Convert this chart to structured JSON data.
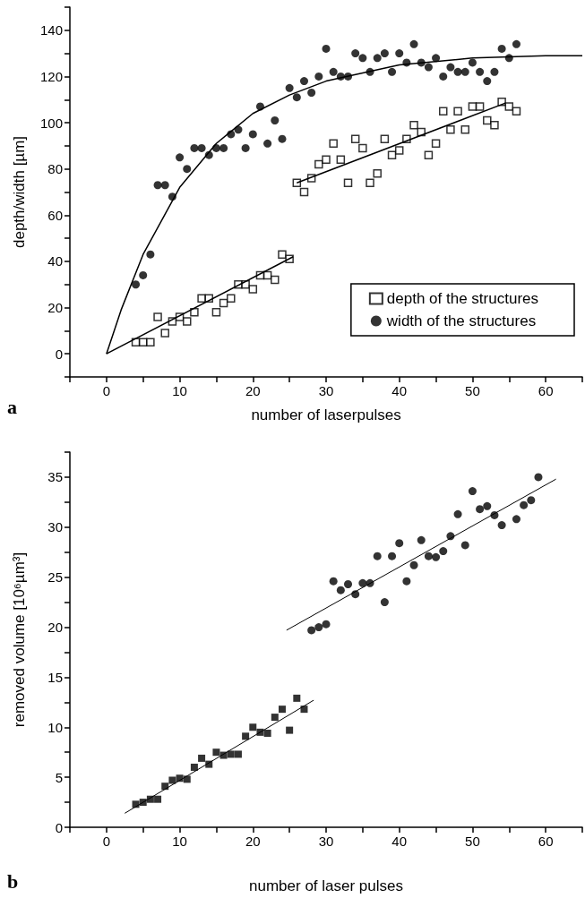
{
  "chart_data": [
    {
      "type": "scatter",
      "xlabel": "number of laserpulses",
      "ylabel": "depth/width [µm]",
      "xlim": [
        -5,
        65
      ],
      "ylim": [
        -10,
        150
      ],
      "xticks": [
        {
          "value": -5,
          "label": null
        },
        0,
        {
          "value": 5,
          "label": null
        },
        10,
        {
          "value": 15,
          "label": null
        },
        20,
        {
          "value": 25,
          "label": null
        },
        30,
        {
          "value": 35,
          "label": null
        },
        40,
        {
          "value": 45,
          "label": null
        },
        50,
        {
          "value": 55,
          "label": null
        },
        60,
        {
          "value": 65,
          "label": null
        }
      ],
      "yticks": [
        {
          "value": -10,
          "label": null
        },
        0,
        {
          "value": 10,
          "label": null
        },
        20,
        {
          "value": 30,
          "label": null
        },
        40,
        {
          "value": 50,
          "label": null
        },
        60,
        {
          "value": 70,
          "label": null
        },
        80,
        {
          "value": 90,
          "label": null
        },
        100,
        {
          "value": 110,
          "label": null
        },
        120,
        {
          "value": 130,
          "label": null
        },
        140,
        {
          "value": 150,
          "label": null
        }
      ],
      "grid": false,
      "legend": "bottom right",
      "annotations": [
        "a"
      ],
      "series": [
        {
          "name": "depth of the structures",
          "marker": "square",
          "color": "#000000",
          "x": [
            4,
            5,
            6,
            7,
            8,
            9,
            10,
            11,
            12,
            13,
            14,
            15,
            16,
            17,
            18,
            19,
            20,
            21,
            22,
            23,
            24,
            25,
            26,
            27,
            28,
            29,
            30,
            31,
            32,
            33,
            34,
            35,
            36,
            37,
            38,
            39,
            40,
            41,
            42,
            43,
            44,
            45,
            46,
            47,
            48,
            49,
            50,
            51,
            52,
            53,
            54,
            55,
            56
          ],
          "values": [
            5,
            5,
            5,
            16,
            9,
            14,
            16,
            14,
            18,
            24,
            24,
            18,
            22,
            24,
            30,
            30,
            28,
            34,
            34,
            32,
            43,
            41,
            74,
            70,
            76,
            82,
            84,
            91,
            84,
            74,
            93,
            89,
            74,
            78,
            93,
            86,
            88,
            93,
            99,
            96,
            86,
            91,
            105,
            97,
            105,
            97,
            107,
            107,
            101,
            99,
            109,
            107,
            105
          ]
        },
        {
          "name": "width of the structures",
          "marker": "circle",
          "color": "#000000",
          "x": [
            4,
            5,
            6,
            7,
            8,
            9,
            10,
            11,
            12,
            13,
            14,
            15,
            16,
            17,
            18,
            19,
            20,
            21,
            22,
            23,
            24,
            25,
            26,
            27,
            28,
            29,
            30,
            31,
            32,
            33,
            34,
            35,
            36,
            37,
            38,
            39,
            40,
            41,
            42,
            43,
            44,
            45,
            46,
            47,
            48,
            49,
            50,
            51,
            52,
            53,
            54,
            55,
            56
          ],
          "values": [
            30,
            34,
            43,
            73,
            73,
            68,
            85,
            80,
            89,
            89,
            86,
            89,
            89,
            95,
            97,
            89,
            95,
            107,
            91,
            101,
            93,
            115,
            111,
            118,
            113,
            120,
            132,
            122,
            120,
            120,
            130,
            128,
            122,
            128,
            130,
            122,
            130,
            126,
            134,
            126,
            124,
            128,
            120,
            124,
            122,
            122,
            126,
            122,
            118,
            122,
            132,
            128,
            134
          ]
        },
        {
          "type": "line",
          "marker": "none",
          "color": "#000000",
          "x": [
            0,
            2,
            5,
            10,
            15,
            20,
            25,
            30,
            40,
            50,
            60,
            65
          ],
          "values": [
            0,
            19,
            43,
            72,
            91,
            104,
            112,
            118,
            125,
            128,
            129,
            129
          ]
        },
        {
          "type": "line",
          "marker": "none",
          "color": "#000000",
          "x": [
            0,
            25.5
          ],
          "values": [
            0,
            42
          ]
        },
        {
          "type": "line",
          "marker": "none",
          "color": "#000000",
          "x": [
            26,
            54.5
          ],
          "values": [
            74,
            108.5
          ]
        }
      ]
    },
    {
      "type": "scatter",
      "xlabel": "number of laser pulses",
      "ylabel": "removed volume [10⁶µm³]",
      "xlim": [
        -5,
        65
      ],
      "ylim": [
        0,
        37.5
      ],
      "xticks": [
        {
          "value": -5,
          "label": null
        },
        0,
        {
          "value": 5,
          "label": null
        },
        10,
        {
          "value": 15,
          "label": null
        },
        20,
        {
          "value": 25,
          "label": null
        },
        30,
        {
          "value": 35,
          "label": null
        },
        40,
        {
          "value": 45,
          "label": null
        },
        50,
        {
          "value": 55,
          "label": null
        },
        60,
        {
          "value": 65,
          "label": null
        }
      ],
      "yticks": [
        0,
        {
          "value": 2.5,
          "label": null
        },
        5,
        {
          "value": 7.5,
          "label": null
        },
        10,
        {
          "value": 12.5,
          "label": null
        },
        15,
        {
          "value": 17.5,
          "label": null
        },
        20,
        {
          "value": 22.5,
          "label": null
        },
        25,
        {
          "value": 27.5,
          "label": null
        },
        30,
        {
          "value": 32.5,
          "label": null
        },
        35,
        {
          "value": 37.5,
          "label": null
        }
      ],
      "grid": false,
      "annotations": [
        "b"
      ],
      "series": [
        {
          "marker": "square",
          "color": "#000000",
          "x": [
            4,
            5,
            6,
            7,
            8,
            9,
            10,
            11,
            12,
            13,
            14,
            15,
            16,
            17,
            18,
            19,
            20,
            21,
            22,
            23,
            24,
            25,
            26,
            27
          ],
          "values": [
            2.3,
            2.5,
            2.8,
            2.8,
            4.1,
            4.7,
            4.9,
            4.8,
            6,
            6.9,
            6.3,
            7.5,
            7.2,
            7.3,
            7.3,
            9.1,
            10,
            9.5,
            9.4,
            11,
            11.8,
            9.7,
            12.9,
            11.8
          ]
        },
        {
          "marker": "circle",
          "color": "#000000",
          "x": [
            28,
            29,
            30,
            31,
            32,
            33,
            34,
            35,
            36,
            37,
            38,
            39,
            40,
            41,
            42,
            43,
            44,
            45,
            46,
            47,
            48,
            49,
            50,
            51,
            52,
            53,
            54,
            56,
            57,
            58,
            59
          ],
          "values": [
            19.7,
            20,
            20.3,
            24.6,
            23.7,
            24.3,
            23.3,
            24.4,
            24.4,
            27.1,
            22.5,
            27.1,
            28.4,
            24.6,
            26.2,
            28.7,
            27.1,
            27,
            27.6,
            29.1,
            31.3,
            28.2,
            33.6,
            31.8,
            32.1,
            31.2,
            30.2,
            30.8,
            32.2,
            32.7,
            35
          ]
        },
        {
          "type": "line",
          "marker": "none",
          "color": "#000000",
          "x": [
            2.5,
            28.3
          ],
          "values": [
            1.4,
            12.7
          ]
        },
        {
          "type": "line",
          "marker": "none",
          "color": "#000000",
          "x": [
            24.6,
            61.4
          ],
          "values": [
            19.7,
            34.8
          ]
        }
      ]
    }
  ]
}
